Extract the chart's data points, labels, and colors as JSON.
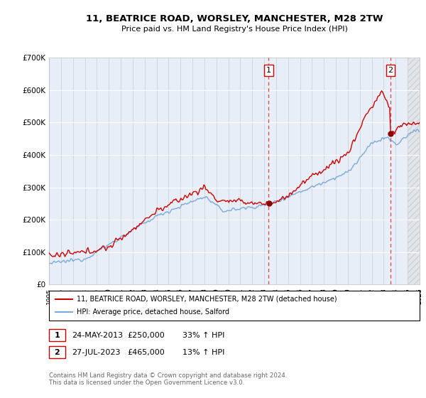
{
  "title": "11, BEATRICE ROAD, WORSLEY, MANCHESTER, M28 2TW",
  "subtitle": "Price paid vs. HM Land Registry's House Price Index (HPI)",
  "red_label": "11, BEATRICE ROAD, WORSLEY, MANCHESTER, M28 2TW (detached house)",
  "blue_label": "HPI: Average price, detached house, Salford",
  "transaction1_label": "1",
  "transaction1_date": "24-MAY-2013",
  "transaction1_price": "£250,000",
  "transaction1_hpi": "33% ↑ HPI",
  "transaction2_label": "2",
  "transaction2_date": "27-JUL-2023",
  "transaction2_price": "£465,000",
  "transaction2_hpi": "13% ↑ HPI",
  "footer": "Contains HM Land Registry data © Crown copyright and database right 2024.\nThis data is licensed under the Open Government Licence v3.0.",
  "vline1_year": 2013.38,
  "vline2_year": 2023.56,
  "hatch_start": 2025.0,
  "ylim": [
    0,
    700000
  ],
  "xlim_start": 1995,
  "xlim_end": 2026,
  "red_color": "#cc0000",
  "blue_color": "#7aaadd",
  "vline_color": "#dd4444",
  "background_color": "#e8eef8",
  "plot_bg": "#ffffff",
  "dot_color": "#880000"
}
